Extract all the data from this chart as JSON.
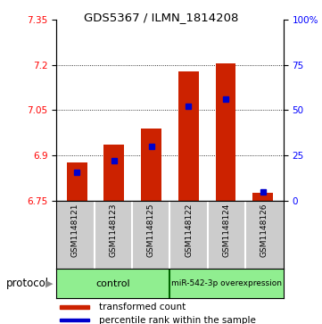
{
  "title": "GDS5367 / ILMN_1814208",
  "samples": [
    "GSM1148121",
    "GSM1148123",
    "GSM1148125",
    "GSM1148122",
    "GSM1148124",
    "GSM1148126"
  ],
  "transformed_counts": [
    6.878,
    6.937,
    6.99,
    7.178,
    7.205,
    6.778
  ],
  "percentile_ranks": [
    16,
    22,
    30,
    52,
    56,
    5
  ],
  "ylim_left": [
    6.75,
    7.35
  ],
  "ylim_right": [
    0,
    100
  ],
  "yticks_left": [
    6.75,
    6.9,
    7.05,
    7.2,
    7.35
  ],
  "yticks_right": [
    0,
    25,
    50,
    75,
    100
  ],
  "ytick_labels_left": [
    "6.75",
    "6.9",
    "7.05",
    "7.2",
    "7.35"
  ],
  "ytick_labels_right": [
    "0",
    "25",
    "50",
    "75",
    "100%"
  ],
  "bar_color": "#CC2200",
  "percentile_color": "#0000CC",
  "bar_width": 0.55,
  "bg_label_row": "#cccccc",
  "bg_protocol_row": "#90EE90",
  "baseline": 6.75,
  "dotted_lines": [
    6.9,
    7.05,
    7.2
  ],
  "control_label": "control",
  "overexp_label": "miR-542-3p overexpression",
  "protocol_text": "protocol"
}
